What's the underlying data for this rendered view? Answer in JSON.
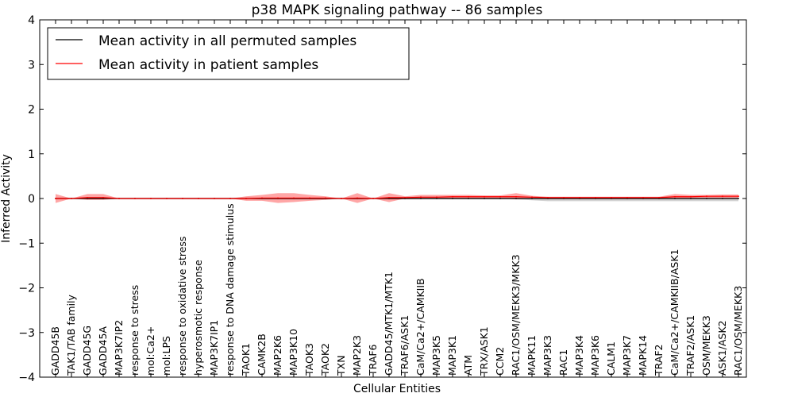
{
  "chart_data": {
    "type": "line",
    "title": "p38 MAPK signaling pathway -- 86 samples",
    "xlabel": "Cellular Entities",
    "ylabel": "Inferred Activity",
    "ylim": [
      -4,
      4
    ],
    "yticks": [
      -4,
      -3,
      -2,
      -1,
      0,
      1,
      2,
      3,
      4
    ],
    "ytick_labels": [
      "−4",
      "−3",
      "−2",
      "−1",
      "0",
      "1",
      "2",
      "3",
      "4"
    ],
    "legend_position": "top-left",
    "categories": [
      "GADD45B",
      "TAK1/TAB family",
      "GADD45G",
      "GADD45A",
      "MAP3K7IP2",
      "response to stress",
      "mol:Ca2+",
      "mol:LPS",
      "response to oxidative stress",
      "hyperosmotic response",
      "MAP3K7IP1",
      "response to DNA damage stimulus",
      "TAOK1",
      "CAMK2B",
      "MAP2K6",
      "MAP3K10",
      "TAOK3",
      "TAOK2",
      "TXN",
      "MAP2K3",
      "TRAF6",
      "GADD45/MTK1/MTK1",
      "TRAF6/ASK1",
      "CaM/Ca2+/CAMKIIB",
      "MAP3K5",
      "MAP3K1",
      "ATM",
      "TRX/ASK1",
      "CCM2",
      "RAC1/OSM/MEKK3/MKK3",
      "MAPK11",
      "MAP3K3",
      "RAC1",
      "MAP3K4",
      "MAP3K6",
      "CALM1",
      "MAP3K7",
      "MAPK14",
      "TRAF2",
      "CaM/Ca2+/CAMKIIB/ASK1",
      "TRAF2/ASK1",
      "OSM/MEKK3",
      "ASK1/ASK2",
      "RAC1/OSM/MEKK3"
    ],
    "series": [
      {
        "name": "Mean activity in all permuted samples",
        "color": "#000000",
        "values": [
          0.0,
          0.0,
          0.0,
          0.0,
          0.0,
          0.0,
          0.0,
          0.0,
          0.0,
          0.0,
          0.0,
          0.0,
          0.0,
          0.0,
          0.0,
          0.0,
          0.0,
          0.0,
          0.0,
          0.0,
          0.0,
          0.0,
          0.0,
          0.0,
          0.0,
          0.0,
          0.0,
          0.0,
          0.0,
          0.0,
          0.0,
          0.0,
          0.0,
          0.0,
          0.0,
          0.0,
          0.0,
          0.0,
          0.0,
          0.0,
          0.0,
          0.0,
          0.0,
          0.0
        ],
        "band_upper": [
          0.02,
          0.02,
          0.02,
          0.02,
          0.02,
          0.02,
          0.02,
          0.02,
          0.02,
          0.02,
          0.02,
          0.02,
          0.02,
          0.02,
          0.02,
          0.02,
          0.02,
          0.02,
          0.02,
          0.02,
          0.02,
          0.02,
          0.02,
          0.02,
          0.02,
          0.02,
          0.02,
          0.02,
          0.02,
          0.02,
          0.02,
          0.02,
          0.02,
          0.02,
          0.02,
          0.02,
          0.02,
          0.02,
          0.02,
          0.02,
          0.02,
          0.02,
          0.02,
          0.02
        ],
        "band_lower": [
          -0.02,
          -0.02,
          -0.02,
          -0.02,
          -0.02,
          -0.02,
          -0.02,
          -0.02,
          -0.02,
          -0.02,
          -0.02,
          -0.02,
          -0.02,
          -0.02,
          -0.02,
          -0.02,
          -0.02,
          -0.02,
          -0.02,
          -0.02,
          -0.02,
          -0.02,
          -0.02,
          -0.02,
          -0.02,
          -0.02,
          -0.02,
          -0.02,
          -0.02,
          -0.02,
          -0.04,
          -0.06,
          -0.06,
          -0.06,
          -0.06,
          -0.06,
          -0.06,
          -0.06,
          -0.06,
          -0.06,
          -0.06,
          -0.06,
          -0.06,
          -0.06
        ]
      },
      {
        "name": "Mean activity in patient samples",
        "color": "#ff0000",
        "values": [
          0.0,
          0.0,
          0.02,
          0.02,
          0.0,
          0.0,
          0.0,
          0.0,
          0.0,
          0.0,
          0.0,
          0.0,
          0.0,
          0.01,
          0.01,
          0.01,
          0.01,
          0.01,
          0.0,
          0.01,
          0.0,
          0.02,
          0.02,
          0.03,
          0.03,
          0.04,
          0.04,
          0.04,
          0.04,
          0.04,
          0.03,
          0.02,
          0.02,
          0.02,
          0.02,
          0.02,
          0.02,
          0.02,
          0.02,
          0.04,
          0.04,
          0.05,
          0.05,
          0.05
        ],
        "band_upper": [
          0.1,
          0.0,
          0.1,
          0.1,
          0.0,
          0.0,
          0.0,
          0.0,
          0.0,
          0.0,
          0.0,
          0.0,
          0.05,
          0.08,
          0.12,
          0.12,
          0.08,
          0.05,
          0.0,
          0.12,
          0.0,
          0.12,
          0.05,
          0.08,
          0.08,
          0.08,
          0.08,
          0.07,
          0.07,
          0.12,
          0.06,
          0.04,
          0.04,
          0.04,
          0.04,
          0.04,
          0.04,
          0.04,
          0.04,
          0.1,
          0.08,
          0.08,
          0.09,
          0.09
        ],
        "band_lower": [
          -0.1,
          0.0,
          -0.03,
          -0.03,
          0.0,
          0.0,
          0.0,
          0.0,
          0.0,
          0.0,
          0.0,
          0.0,
          -0.05,
          -0.05,
          -0.1,
          -0.08,
          -0.05,
          -0.03,
          0.0,
          -0.1,
          0.0,
          -0.08,
          0.0,
          0.0,
          0.0,
          0.0,
          0.0,
          0.01,
          0.01,
          -0.02,
          0.0,
          0.0,
          0.0,
          0.0,
          0.0,
          0.0,
          0.0,
          0.0,
          0.0,
          0.0,
          0.0,
          0.0,
          0.0,
          0.0
        ]
      }
    ]
  }
}
